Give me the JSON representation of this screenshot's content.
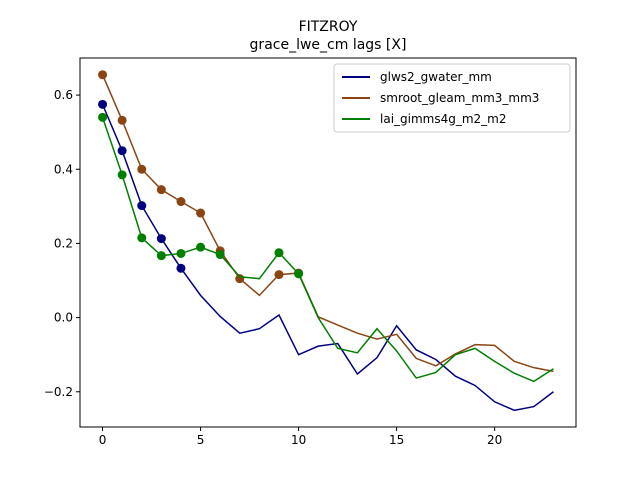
{
  "chart_data": {
    "type": "line",
    "title": "FITZROY",
    "subtitle": "grace_lwe_cm lags [X]",
    "xlabel": "",
    "ylabel": "",
    "xlim": [
      -1.15,
      24.15
    ],
    "ylim": [
      -0.295,
      0.7
    ],
    "x_ticks": [
      0,
      5,
      10,
      15,
      20
    ],
    "y_ticks": [
      -0.2,
      0.0,
      0.2,
      0.4,
      0.6
    ],
    "y_tick_labels": [
      "−0.2",
      "0.0",
      "0.2",
      "0.4",
      "0.6"
    ],
    "grid": false,
    "legend_position": "top-right",
    "x": [
      0,
      1,
      2,
      3,
      4,
      5,
      6,
      7,
      8,
      9,
      10,
      11,
      12,
      13,
      14,
      15,
      16,
      17,
      18,
      19,
      20,
      21,
      22,
      23
    ],
    "series": [
      {
        "name": "glws2_gwater_mm",
        "color": "#00007f",
        "values": [
          0.575,
          0.45,
          0.302,
          0.213,
          0.133,
          0.06,
          0.003,
          -0.042,
          -0.03,
          0.007,
          -0.1,
          -0.077,
          -0.07,
          -0.152,
          -0.108,
          -0.022,
          -0.087,
          -0.113,
          -0.158,
          -0.183,
          -0.227,
          -0.25,
          -0.24,
          -0.2
        ],
        "marker_indices": [
          0,
          1,
          2,
          3,
          4
        ]
      },
      {
        "name": "smroot_gleam_mm3_mm3",
        "color": "#8b4513",
        "values": [
          0.655,
          0.532,
          0.4,
          0.345,
          0.313,
          0.282,
          0.18,
          0.105,
          0.06,
          0.116,
          0.12,
          0.002,
          -0.02,
          -0.042,
          -0.058,
          -0.045,
          -0.11,
          -0.13,
          -0.098,
          -0.073,
          -0.075,
          -0.118,
          -0.135,
          -0.145
        ],
        "marker_indices": [
          0,
          1,
          2,
          3,
          4,
          5,
          6,
          7,
          9,
          10
        ]
      },
      {
        "name": "lai_gimms4g_m2_m2",
        "color": "#007f00",
        "values": [
          0.54,
          0.385,
          0.215,
          0.167,
          0.173,
          0.19,
          0.17,
          0.11,
          0.105,
          0.175,
          0.118,
          0.0,
          -0.083,
          -0.095,
          -0.03,
          -0.09,
          -0.163,
          -0.148,
          -0.1,
          -0.083,
          -0.118,
          -0.15,
          -0.172,
          -0.138
        ],
        "marker_indices": [
          0,
          1,
          2,
          3,
          4,
          5,
          6,
          9,
          10
        ]
      }
    ]
  }
}
